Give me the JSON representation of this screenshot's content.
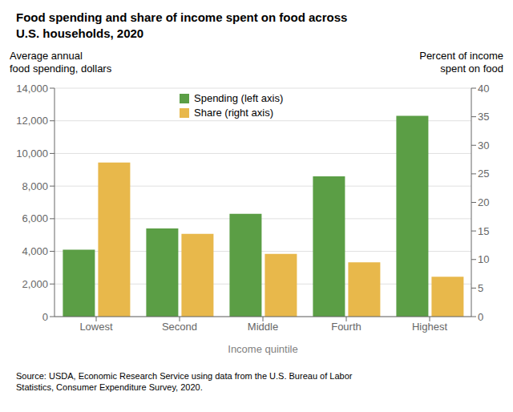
{
  "chart_data": {
    "type": "bar",
    "title": "Food spending and share of income spent on food across\nU.S. households, 2020",
    "categories": [
      "Lowest",
      "Second",
      "Middle",
      "Fourth",
      "Highest"
    ],
    "series": [
      {
        "name": "Spending (left axis)",
        "color": "#5b9e45",
        "values": [
          4100,
          5400,
          6300,
          8600,
          12300
        ]
      },
      {
        "name": "Share (right axis)",
        "color": "#e8b84b",
        "values": [
          27,
          14.5,
          11,
          9.5,
          7
        ],
        "axis": "y2"
      }
    ],
    "xlabel": "Income quintile",
    "ylabel": "Average annual\nfood spending, dollars",
    "y2label": "Percent of income\nspent on food",
    "ylim": [
      0,
      14000
    ],
    "yticks": [
      0,
      {
        "value": 2000,
        "label": "2,000"
      },
      {
        "value": 4000,
        "label": "4,000"
      },
      {
        "value": 6000,
        "label": "6,000"
      },
      {
        "value": 8000,
        "label": "8,000"
      },
      {
        "value": 10000,
        "label": "10,000"
      },
      {
        "value": 12000,
        "label": "12,000"
      },
      {
        "value": 14000,
        "label": "14,000"
      }
    ],
    "y2lim": [
      0,
      40
    ],
    "y2ticks": [
      0,
      5,
      10,
      15,
      20,
      25,
      30,
      35,
      40
    ],
    "grid": true,
    "legend": "upper left",
    "source": "Source: USDA, Economic Research Service using data from the U.S. Bureau of Labor\nStatistics, Consumer Expenditure Survey, 2020."
  }
}
